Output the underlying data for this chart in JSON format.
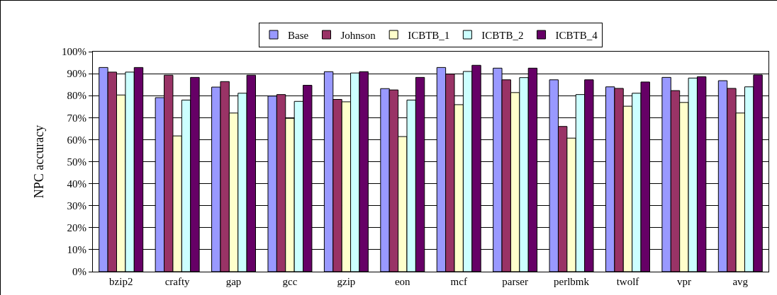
{
  "chart_data": {
    "type": "bar",
    "ylabel": "NPC accuracy",
    "categories": [
      "bzip2",
      "crafty",
      "gap",
      "gcc",
      "gzip",
      "eon",
      "mcf",
      "parser",
      "perlbmk",
      "twolf",
      "vpr",
      "avg"
    ],
    "series": [
      {
        "name": "Base",
        "color": "#9999ff",
        "values": [
          92.8,
          79.1,
          83.9,
          79.8,
          90.9,
          83.2,
          92.8,
          92.5,
          87.2,
          84.0,
          88.3,
          86.8
        ]
      },
      {
        "name": "Johnson",
        "color": "#993366",
        "values": [
          90.7,
          89.3,
          86.4,
          80.5,
          78.3,
          82.6,
          89.8,
          87.2,
          66.0,
          83.3,
          82.3,
          83.3
        ]
      },
      {
        "name": "ICBTB_1",
        "color": "#ffffcc",
        "values": [
          80.3,
          61.7,
          72.1,
          69.7,
          77.2,
          61.4,
          75.9,
          81.4,
          60.7,
          75.2,
          76.9,
          72.1
        ]
      },
      {
        "name": "ICBTB_2",
        "color": "#ccffff",
        "values": [
          90.7,
          78.0,
          81.1,
          77.4,
          90.3,
          78.0,
          91.0,
          88.2,
          80.5,
          81.1,
          88.0,
          84.0
        ]
      },
      {
        "name": "ICBTB_4",
        "color": "#660066",
        "values": [
          92.8,
          88.3,
          89.3,
          84.7,
          90.9,
          88.3,
          93.8,
          92.5,
          87.2,
          86.2,
          88.6,
          89.4
        ]
      }
    ],
    "ylim": [
      0,
      100
    ],
    "yticks": [
      {
        "value": 0,
        "label": "0%"
      },
      {
        "value": 10,
        "label": "10%"
      },
      {
        "value": 20,
        "label": "20%"
      },
      {
        "value": 30,
        "label": "30%"
      },
      {
        "value": 40,
        "label": "40%"
      },
      {
        "value": 50,
        "label": "50%"
      },
      {
        "value": 60,
        "label": "60%"
      },
      {
        "value": 70,
        "label": "70%"
      },
      {
        "value": 80,
        "label": "80%"
      },
      {
        "value": 90,
        "label": "90%"
      },
      {
        "value": 100,
        "label": "100%"
      }
    ],
    "grid": "y",
    "legend": "top"
  }
}
